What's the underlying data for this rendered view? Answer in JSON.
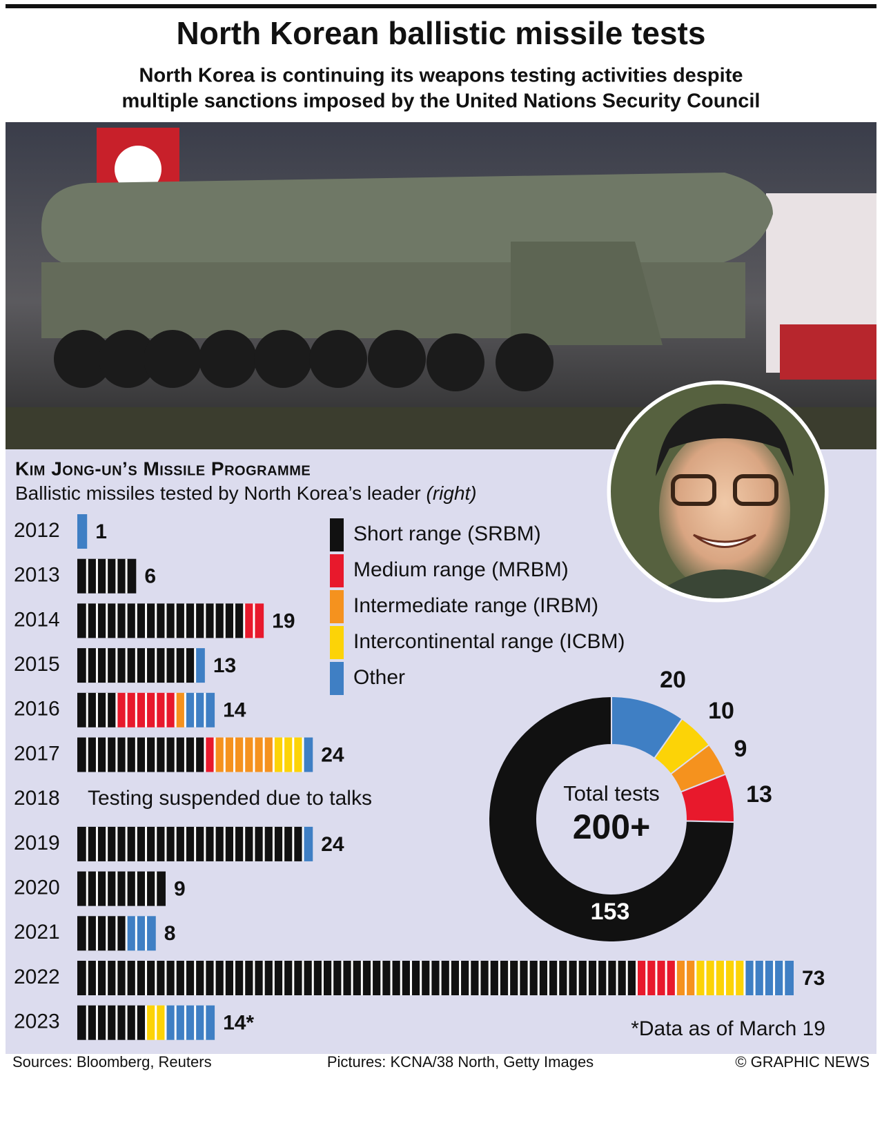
{
  "header": {
    "title": "North Korean ballistic missile tests",
    "subtitle_line1": "North Korea is continuing its weapons testing activities despite",
    "subtitle_line2": "multiple sanctions imposed by the United Nations Security Council"
  },
  "section": {
    "title": "Kim Jong-un’s Missile Programme",
    "subtitle": "Ballistic missiles tested by North Korea’s leader",
    "subtitle_note": "(right)"
  },
  "chart_data": [
    {
      "type": "stacked_bar",
      "orientation": "horizontal",
      "categories": [
        "2012",
        "2013",
        "2014",
        "2015",
        "2016",
        "2017",
        "2018",
        "2019",
        "2020",
        "2021",
        "2022",
        "2023"
      ],
      "series": [
        {
          "name": "Short range (SRBM)",
          "color": "#111111",
          "values": [
            0,
            6,
            17,
            12,
            4,
            13,
            null,
            23,
            9,
            5,
            57,
            7
          ]
        },
        {
          "name": "Medium range (MRBM)",
          "color": "#e8192c",
          "values": [
            0,
            0,
            2,
            0,
            6,
            1,
            null,
            0,
            0,
            0,
            4,
            0
          ]
        },
        {
          "name": "Intermediate range (IRBM)",
          "color": "#f5921e",
          "values": [
            0,
            0,
            0,
            0,
            1,
            6,
            null,
            0,
            0,
            0,
            2,
            0
          ]
        },
        {
          "name": "Intercontinental range (ICBM)",
          "color": "#fcd307",
          "values": [
            0,
            0,
            0,
            0,
            0,
            3,
            null,
            0,
            0,
            0,
            5,
            2
          ]
        },
        {
          "name": "Other",
          "color": "#3f7fc4",
          "values": [
            1,
            0,
            0,
            1,
            3,
            1,
            null,
            1,
            0,
            3,
            5,
            5
          ]
        }
      ],
      "totals": [
        1,
        6,
        19,
        13,
        14,
        24,
        null,
        24,
        9,
        8,
        73,
        14
      ],
      "value_labels": [
        "1",
        "6",
        "19",
        "13",
        "14",
        "24",
        null,
        "24",
        "9",
        "8",
        "73",
        "14*"
      ],
      "suspended_note": "Testing suspended due to talks",
      "footnote": "*Data as of March 19"
    },
    {
      "type": "donut",
      "values": [
        20,
        10,
        9,
        13,
        153
      ],
      "colors": [
        "#3f7fc4",
        "#fcd307",
        "#f5921e",
        "#e8192c",
        "#111111"
      ],
      "center_label": "Total tests",
      "center_value": "200+"
    }
  ],
  "footer": {
    "sources": "Sources: Bloomberg, Reuters",
    "pictures": "Pictures: KCNA/38 North, Getty Images",
    "credit": "© GRAPHIC NEWS"
  }
}
